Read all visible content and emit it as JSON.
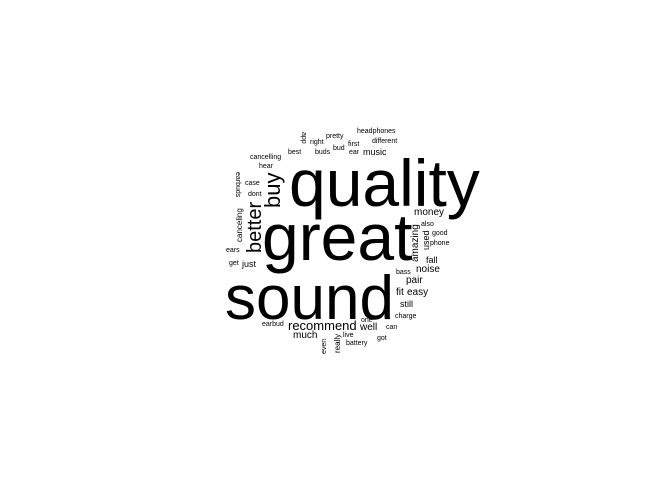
{
  "background": "#ffffff",
  "text_color": "#000000",
  "words": {
    "quality": "quality",
    "great": "great",
    "sound": "sound",
    "buy": "buy",
    "better": "better",
    "recommend": "recommend",
    "money": "money",
    "amazing": "amazing",
    "pair": "pair",
    "noise": "noise",
    "fit": "fit",
    "easy": "easy",
    "well": "well",
    "much": "much",
    "music": "music",
    "just": "just",
    "still": "still",
    "fall": "fall",
    "used": "used",
    "also": "also",
    "good": "good",
    "phone": "phone",
    "bass": "bass",
    "charge": "charge",
    "can": "can",
    "got": "got",
    "battery": "battery",
    "live": "live",
    "really": "really",
    "one": "one",
    "even": "even",
    "earbud": "earbud",
    "get": "get",
    "ears": "ears",
    "canceling": "canceling",
    "case": "case",
    "earbuds": "earbuds",
    "dont": "dont",
    "hear": "hear",
    "cancelling": "cancelling",
    "best": "best",
    "app": "app",
    "right": "right",
    "pretty": "pretty",
    "buds": "buds",
    "bud": "bud",
    "first": "first",
    "ear": "ear",
    "headphones": "headphones",
    "different": "different"
  }
}
